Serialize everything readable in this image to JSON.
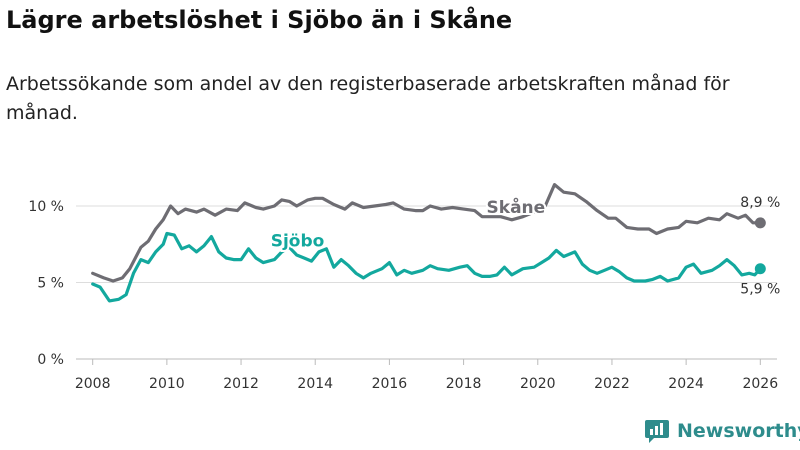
{
  "title": "Lägre arbetslöshet i Sjöbo än i Skåne",
  "subtitle": "Arbetssökande som andel av den registerbaserade arbetskraften månad för månad.",
  "brand": "Newsworthy",
  "colors": {
    "skane": "#6e6d73",
    "sjobo": "#13a89e",
    "grid": "#dddddd",
    "brand": "#2e8c8c"
  },
  "chart_data": {
    "type": "line",
    "title": "Lägre arbetslöshet i Sjöbo än i Skåne",
    "xlabel": "",
    "ylabel": "",
    "xlim": [
      2007.55,
      2026.45
    ],
    "ylim": [
      0,
      10
    ],
    "x_ticks": [
      {
        "value": 2008,
        "label": "2008"
      },
      {
        "value": 2010,
        "label": "2010"
      },
      {
        "value": 2012,
        "label": "2012"
      },
      {
        "value": 2014,
        "label": "2014"
      },
      {
        "value": 2016,
        "label": "2016"
      },
      {
        "value": 2018,
        "label": "2018"
      },
      {
        "value": 2020,
        "label": "2020"
      },
      {
        "value": 2022,
        "label": "2022"
      },
      {
        "value": 2024,
        "label": "2024"
      },
      {
        "value": 2026,
        "label": "2026"
      }
    ],
    "y_ticks": [
      {
        "value": 0,
        "label": "0 %"
      },
      {
        "value": 5,
        "label": "5 %"
      },
      {
        "value": 10,
        "label": "10 %"
      }
    ],
    "grid": true,
    "series": [
      {
        "name": "Skåne",
        "color": "#6e6d73",
        "end_label": "8,9 %",
        "points": [
          [
            2008.0,
            5.6
          ],
          [
            2008.3,
            5.3
          ],
          [
            2008.55,
            5.1
          ],
          [
            2008.8,
            5.3
          ],
          [
            2009.0,
            5.9
          ],
          [
            2009.3,
            7.3
          ],
          [
            2009.5,
            7.7
          ],
          [
            2009.7,
            8.5
          ],
          [
            2009.9,
            9.1
          ],
          [
            2010.1,
            10.0
          ],
          [
            2010.3,
            9.5
          ],
          [
            2010.5,
            9.8
          ],
          [
            2010.8,
            9.6
          ],
          [
            2011.0,
            9.8
          ],
          [
            2011.3,
            9.4
          ],
          [
            2011.6,
            9.8
          ],
          [
            2011.9,
            9.7
          ],
          [
            2012.1,
            10.2
          ],
          [
            2012.4,
            9.9
          ],
          [
            2012.6,
            9.8
          ],
          [
            2012.9,
            10.0
          ],
          [
            2013.1,
            10.4
          ],
          [
            2013.3,
            10.3
          ],
          [
            2013.5,
            10.0
          ],
          [
            2013.8,
            10.4
          ],
          [
            2014.0,
            10.5
          ],
          [
            2014.2,
            10.5
          ],
          [
            2014.5,
            10.1
          ],
          [
            2014.8,
            9.8
          ],
          [
            2015.0,
            10.2
          ],
          [
            2015.3,
            9.9
          ],
          [
            2015.6,
            10.0
          ],
          [
            2015.9,
            10.1
          ],
          [
            2016.1,
            10.2
          ],
          [
            2016.4,
            9.8
          ],
          [
            2016.7,
            9.7
          ],
          [
            2016.9,
            9.7
          ],
          [
            2017.1,
            10.0
          ],
          [
            2017.4,
            9.8
          ],
          [
            2017.7,
            9.9
          ],
          [
            2018.0,
            9.8
          ],
          [
            2018.3,
            9.7
          ],
          [
            2018.5,
            9.3
          ],
          [
            2018.8,
            9.3
          ],
          [
            2019.0,
            9.3
          ],
          [
            2019.3,
            9.1
          ],
          [
            2019.6,
            9.3
          ],
          [
            2019.9,
            9.6
          ],
          [
            2020.2,
            10.0
          ],
          [
            2020.45,
            11.4
          ],
          [
            2020.7,
            10.9
          ],
          [
            2021.0,
            10.8
          ],
          [
            2021.3,
            10.3
          ],
          [
            2021.6,
            9.7
          ],
          [
            2021.9,
            9.2
          ],
          [
            2022.1,
            9.2
          ],
          [
            2022.4,
            8.6
          ],
          [
            2022.7,
            8.5
          ],
          [
            2023.0,
            8.5
          ],
          [
            2023.2,
            8.2
          ],
          [
            2023.5,
            8.5
          ],
          [
            2023.8,
            8.6
          ],
          [
            2024.0,
            9.0
          ],
          [
            2024.3,
            8.9
          ],
          [
            2024.6,
            9.2
          ],
          [
            2024.9,
            9.1
          ],
          [
            2025.1,
            9.5
          ],
          [
            2025.4,
            9.2
          ],
          [
            2025.6,
            9.4
          ],
          [
            2025.8,
            8.9
          ],
          [
            2026.0,
            8.9
          ]
        ]
      },
      {
        "name": "Sjöbo",
        "color": "#13a89e",
        "end_label": "5,9 %",
        "points": [
          [
            2008.0,
            4.9
          ],
          [
            2008.2,
            4.7
          ],
          [
            2008.45,
            3.8
          ],
          [
            2008.7,
            3.9
          ],
          [
            2008.9,
            4.2
          ],
          [
            2009.1,
            5.6
          ],
          [
            2009.3,
            6.5
          ],
          [
            2009.5,
            6.3
          ],
          [
            2009.7,
            7.0
          ],
          [
            2009.9,
            7.5
          ],
          [
            2010.0,
            8.2
          ],
          [
            2010.2,
            8.1
          ],
          [
            2010.4,
            7.2
          ],
          [
            2010.6,
            7.4
          ],
          [
            2010.8,
            7.0
          ],
          [
            2011.0,
            7.4
          ],
          [
            2011.2,
            8.0
          ],
          [
            2011.4,
            7.0
          ],
          [
            2011.6,
            6.6
          ],
          [
            2011.8,
            6.5
          ],
          [
            2012.0,
            6.5
          ],
          [
            2012.2,
            7.2
          ],
          [
            2012.4,
            6.6
          ],
          [
            2012.6,
            6.3
          ],
          [
            2012.9,
            6.5
          ],
          [
            2013.1,
            7.0
          ],
          [
            2013.3,
            7.3
          ],
          [
            2013.5,
            6.8
          ],
          [
            2013.7,
            6.6
          ],
          [
            2013.9,
            6.4
          ],
          [
            2014.1,
            7.0
          ],
          [
            2014.3,
            7.2
          ],
          [
            2014.5,
            6.0
          ],
          [
            2014.7,
            6.5
          ],
          [
            2014.9,
            6.1
          ],
          [
            2015.1,
            5.6
          ],
          [
            2015.3,
            5.3
          ],
          [
            2015.5,
            5.6
          ],
          [
            2015.8,
            5.9
          ],
          [
            2016.0,
            6.3
          ],
          [
            2016.2,
            5.5
          ],
          [
            2016.4,
            5.8
          ],
          [
            2016.6,
            5.6
          ],
          [
            2016.9,
            5.8
          ],
          [
            2017.1,
            6.1
          ],
          [
            2017.3,
            5.9
          ],
          [
            2017.6,
            5.8
          ],
          [
            2017.9,
            6.0
          ],
          [
            2018.1,
            6.1
          ],
          [
            2018.3,
            5.6
          ],
          [
            2018.5,
            5.4
          ],
          [
            2018.7,
            5.4
          ],
          [
            2018.9,
            5.5
          ],
          [
            2019.1,
            6.0
          ],
          [
            2019.3,
            5.5
          ],
          [
            2019.6,
            5.9
          ],
          [
            2019.9,
            6.0
          ],
          [
            2020.1,
            6.3
          ],
          [
            2020.3,
            6.6
          ],
          [
            2020.5,
            7.1
          ],
          [
            2020.7,
            6.7
          ],
          [
            2021.0,
            7.0
          ],
          [
            2021.2,
            6.2
          ],
          [
            2021.4,
            5.8
          ],
          [
            2021.6,
            5.6
          ],
          [
            2021.8,
            5.8
          ],
          [
            2022.0,
            6.0
          ],
          [
            2022.2,
            5.7
          ],
          [
            2022.4,
            5.3
          ],
          [
            2022.6,
            5.1
          ],
          [
            2022.9,
            5.1
          ],
          [
            2023.1,
            5.2
          ],
          [
            2023.3,
            5.4
          ],
          [
            2023.5,
            5.1
          ],
          [
            2023.8,
            5.3
          ],
          [
            2024.0,
            6.0
          ],
          [
            2024.2,
            6.2
          ],
          [
            2024.4,
            5.6
          ],
          [
            2024.7,
            5.8
          ],
          [
            2024.9,
            6.1
          ],
          [
            2025.1,
            6.5
          ],
          [
            2025.3,
            6.1
          ],
          [
            2025.5,
            5.5
          ],
          [
            2025.7,
            5.6
          ],
          [
            2025.85,
            5.5
          ],
          [
            2026.0,
            5.9
          ]
        ]
      }
    ]
  }
}
